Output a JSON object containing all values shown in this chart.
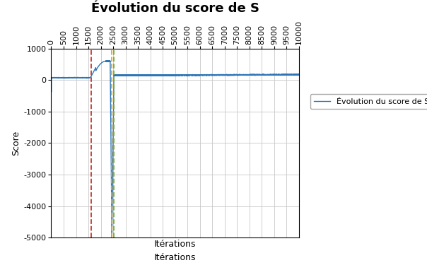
{
  "title": "Évolution du score de S",
  "xlabel": "Itérations",
  "ylabel": "Score",
  "legend_label": "Évolution du score de S",
  "xlim": [
    0,
    10000
  ],
  "ylim": [
    -5000,
    1000
  ],
  "yticks": [
    1000,
    0,
    -1000,
    -2000,
    -3000,
    -4000,
    -5000
  ],
  "xticks": [
    0,
    500,
    1000,
    1500,
    2000,
    2500,
    3000,
    3500,
    4000,
    4500,
    5000,
    5500,
    6000,
    6500,
    7000,
    7500,
    8000,
    8500,
    9000,
    9500,
    10000
  ],
  "line_color": "#2e75b6",
  "vline1_x": 1600,
  "vline1_color": "#c0392b",
  "vline2_x": 2450,
  "vline2_color": "#e6a817",
  "vline2b_x": 2520,
  "vline2b_color": "#70ad47",
  "bg_color": "#ffffff",
  "grid_color": "#c8c8c8",
  "title_fontsize": 13,
  "label_fontsize": 9,
  "tick_fontsize": 8
}
